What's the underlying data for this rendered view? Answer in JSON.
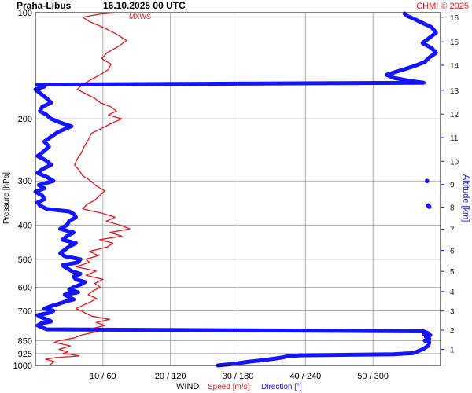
{
  "header": {
    "station": "Praha-Libus",
    "datetime": "16.10.2025 00 UTC",
    "copyright": "CHMI © 2025"
  },
  "colors": {
    "speed": "#e8141b",
    "direction": "#1414ff",
    "grid": "#9a9a9a",
    "text": "#000000"
  },
  "chart_data": {
    "type": "line",
    "y_axis": {
      "label": "Pressure [hPa]",
      "scale": "log",
      "range": [
        1000,
        100
      ],
      "ticks": [
        100,
        200,
        300,
        400,
        500,
        600,
        700,
        850,
        925,
        1000
      ]
    },
    "x_axis": {
      "label": "WIND",
      "speed_range": [
        0,
        60
      ],
      "direction_range": [
        0,
        360
      ],
      "ticks": [
        "10 / 60",
        "20 / 120",
        "30 / 180",
        "40 / 240",
        "50 / 300"
      ]
    },
    "y2_axis": {
      "label": "Altitude [km]",
      "ticks": [
        1,
        2,
        3,
        4,
        5,
        6,
        7,
        8,
        9,
        10,
        11,
        12,
        13,
        14,
        15,
        16
      ],
      "pressure_hpa": [
        900,
        794,
        701,
        617,
        541,
        472,
        411,
        356,
        307,
        264,
        226,
        194,
        166,
        141,
        121,
        103
      ]
    },
    "annotation": "MXWS",
    "legend": [
      "Speed [m/s]",
      "Direction [°]"
    ],
    "series": [
      {
        "name": "Speed [m/s]",
        "pressure": [
          1000,
          975,
          960,
          950,
          940,
          930,
          925,
          915,
          900,
          880,
          860,
          850,
          835,
          820,
          800,
          785,
          770,
          755,
          740,
          725,
          712,
          700,
          690,
          675,
          660,
          645,
          630,
          615,
          600,
          585,
          570,
          555,
          540,
          525,
          510,
          500,
          488,
          475,
          462,
          450,
          440,
          430,
          420,
          410,
          400,
          390,
          380,
          370,
          360,
          350,
          340,
          330,
          320,
          310,
          300,
          290,
          280,
          270,
          260,
          250,
          240,
          230,
          220,
          212,
          205,
          200,
          195,
          190,
          185,
          180,
          175,
          170,
          165,
          160,
          155,
          150,
          145,
          140,
          135,
          130,
          125,
          120,
          115,
          110,
          106,
          103,
          101,
          100
        ],
        "values": [
          2.0,
          2.8,
          1.5,
          3.0,
          6.5,
          5.2,
          4.1,
          4.8,
          3.5,
          5.2,
          2.8,
          3.6,
          5.8,
          6.8,
          9.4,
          8.5,
          10.3,
          9.0,
          11.0,
          8.4,
          7.5,
          6.8,
          6.0,
          7.0,
          8.2,
          9.0,
          7.8,
          8.5,
          9.6,
          8.8,
          10.0,
          7.5,
          9.0,
          6.0,
          8.0,
          7.5,
          9.3,
          8.0,
          10.6,
          11.5,
          9.5,
          12.8,
          11.0,
          14.0,
          12.5,
          10.5,
          11.8,
          9.8,
          7.0,
          7.6,
          8.8,
          9.5,
          10.3,
          9.0,
          8.2,
          7.0,
          6.5,
          5.8,
          6.2,
          6.8,
          7.2,
          7.8,
          8.3,
          10.0,
          11.5,
          12.8,
          10.8,
          12.0,
          11.2,
          9.6,
          8.8,
          7.5,
          6.2,
          7.0,
          8.2,
          9.6,
          10.8,
          11.2,
          9.8,
          10.6,
          12.2,
          13.5,
          12.0,
          10.0,
          8.0,
          7.0,
          9.5,
          12.0
        ]
      },
      {
        "name": "Direction [°]",
        "pressure": [
          1000,
          990,
          975,
          965,
          955,
          948,
          942,
          936,
          930,
          922,
          900,
          880,
          860,
          850,
          840,
          830,
          820,
          815,
          810,
          800,
          790,
          780,
          770,
          760,
          750,
          740,
          730,
          720,
          710,
          700,
          690,
          680,
          670,
          660,
          650,
          640,
          630,
          620,
          610,
          600,
          590,
          580,
          570,
          560,
          550,
          540,
          530,
          520,
          510,
          500,
          490,
          480,
          470,
          460,
          450,
          440,
          430,
          420,
          410,
          400,
          390,
          380,
          372,
          366,
          360,
          352,
          345,
          338,
          330,
          322,
          315,
          308,
          300,
          292,
          285,
          278,
          270,
          262,
          255,
          248,
          240,
          232,
          225,
          218,
          210,
          205,
          200,
          195,
          190,
          185,
          180,
          175,
          170,
          165,
          162,
          160,
          158,
          156,
          153,
          150,
          146,
          142,
          138,
          134,
          130,
          126,
          122,
          118,
          114,
          110,
          107,
          104,
          102,
          100.5
        ],
        "values": [
          162,
          176,
          190,
          203,
          214,
          220,
          224,
          235,
          318,
          336,
          344,
          349,
          350,
          346,
          350,
          347,
          351,
          345,
          349,
          345,
          10,
          6,
          2,
          5,
          14,
          10,
          5,
          2,
          12,
          16,
          8,
          13,
          20,
          26,
          34,
          30,
          26,
          38,
          30,
          34,
          40,
          44,
          36,
          34,
          40,
          32,
          28,
          24,
          38,
          40,
          26,
          22,
          26,
          30,
          36,
          24,
          28,
          34,
          22,
          28,
          30,
          36,
          34,
          30,
          10,
          4,
          2,
          8,
          6,
          0,
          8,
          3,
          16,
          10,
          2,
          6,
          14,
          9,
          2,
          7,
          12,
          8,
          14,
          20,
          32,
          22,
          14,
          10,
          4,
          6,
          14,
          10,
          5,
          0,
          8,
          2,
          345,
          332,
          318,
          312,
          324,
          336,
          346,
          350,
          356,
          352,
          344,
          350,
          356,
          352,
          344,
          336,
          330,
          328
        ]
      }
    ],
    "scattered_points": [
      {
        "name": "Direction [°]",
        "pressure": 300,
        "value": 348
      },
      {
        "name": "Direction [°]",
        "pressure": 352,
        "value": 349
      },
      {
        "name": "Direction [°]",
        "pressure": 355,
        "value": 350
      }
    ],
    "grid": true
  }
}
